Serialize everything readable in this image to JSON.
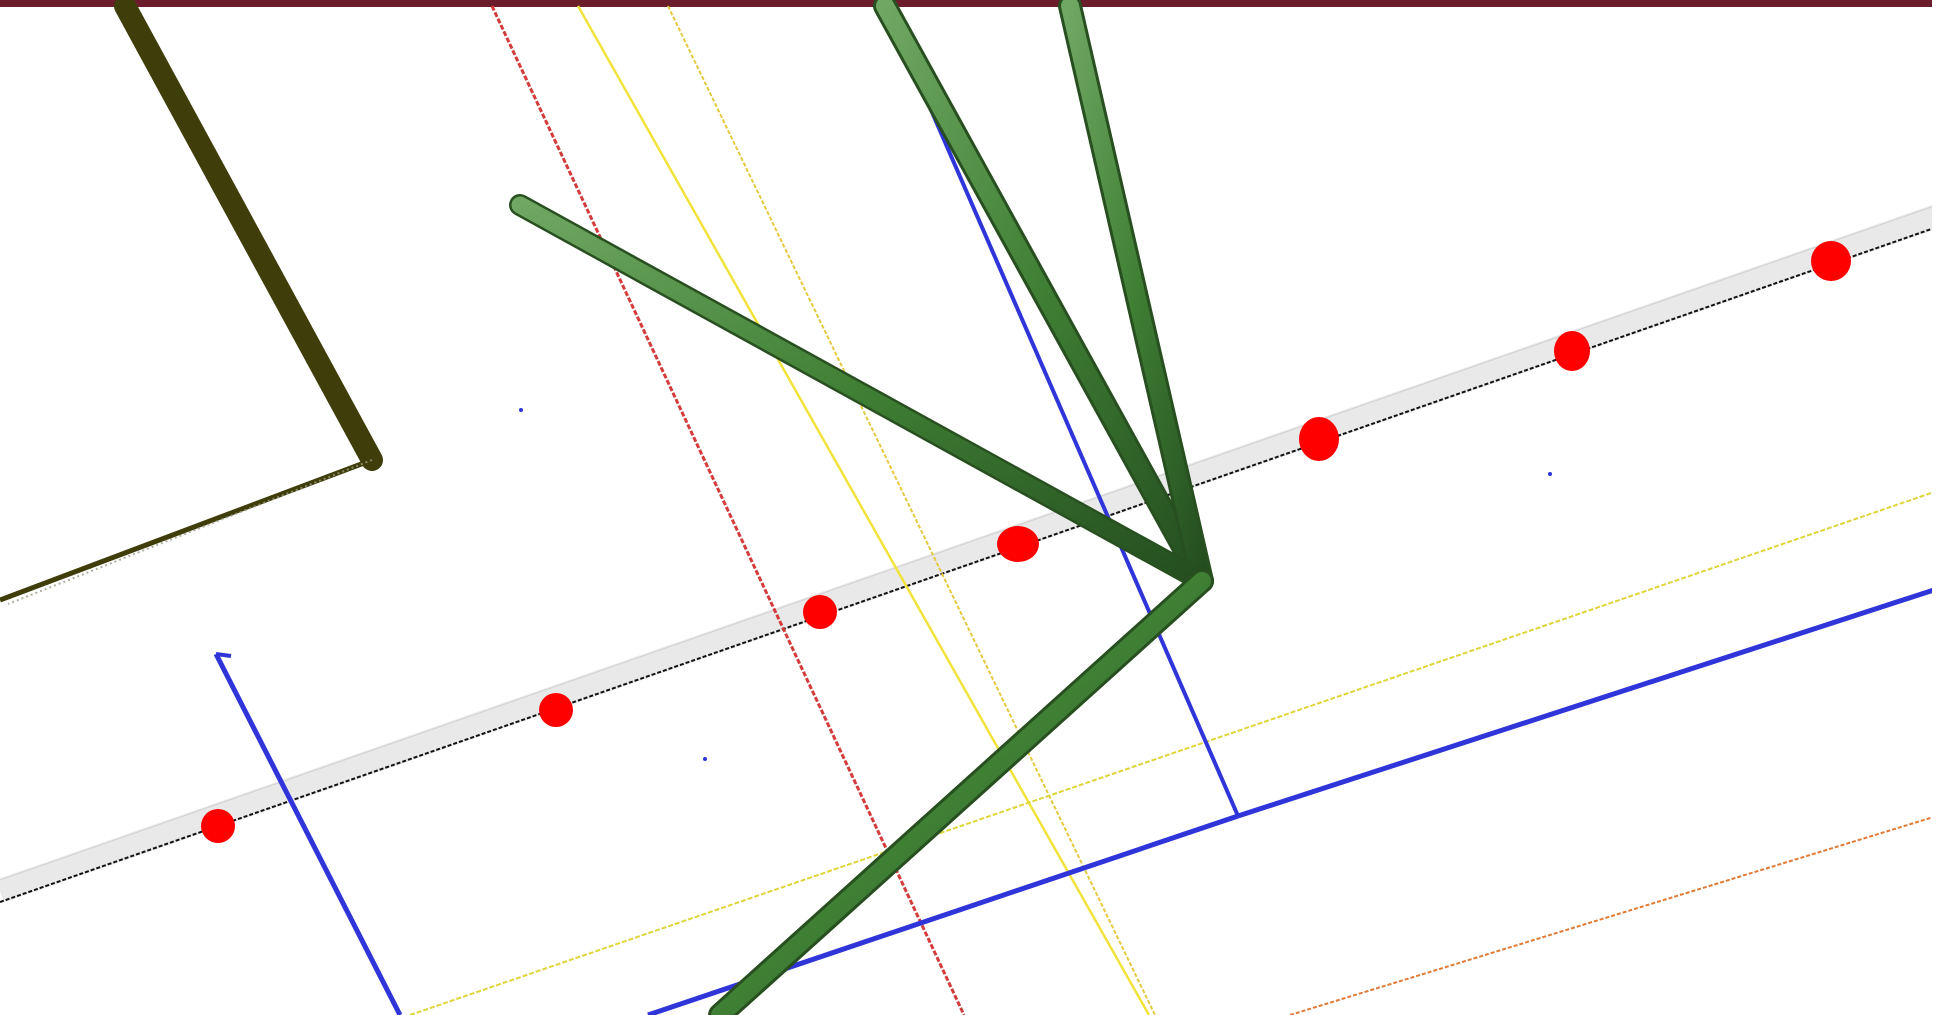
{
  "window": {
    "title": "",
    "title_bar_color": "#6b1d2c"
  },
  "scene": {
    "background": "#ffffff",
    "colors": {
      "green_tube": "#3f7f34",
      "olive_beam": "#3f3d0a",
      "grey_rail": "#e6e6e6",
      "red_line": "#d43b3b",
      "yellow_line": "#f2e33a",
      "blue_line": "#2f35d8",
      "orange_line": "#e07a34",
      "red_marker": "#ff0000"
    }
  }
}
